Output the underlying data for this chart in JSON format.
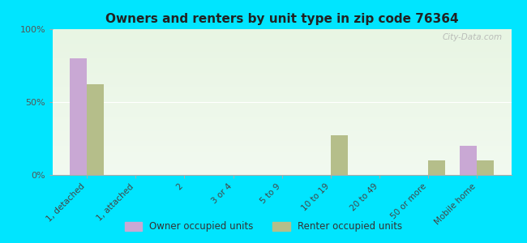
{
  "title": "Owners and renters by unit type in zip code 76364",
  "categories": [
    "1, detached",
    "1, attached",
    "2",
    "3 or 4",
    "5 to 9",
    "10 to 19",
    "20 to 49",
    "50 or more",
    "Mobile home"
  ],
  "owner_values": [
    80,
    0,
    0,
    0,
    0,
    0,
    0,
    0,
    20
  ],
  "renter_values": [
    62,
    0,
    0,
    0,
    0,
    27,
    0,
    10,
    10
  ],
  "owner_color": "#c9a8d4",
  "renter_color": "#b5be8a",
  "background_outer": "#00e5ff",
  "bg_top_color": "#e8f5e3",
  "bg_bottom_color": "#f2faf0",
  "ylim": [
    0,
    100
  ],
  "yticks": [
    0,
    50,
    100
  ],
  "ytick_labels": [
    "0%",
    "50%",
    "100%"
  ],
  "bar_width": 0.35,
  "legend_owner": "Owner occupied units",
  "legend_renter": "Renter occupied units",
  "watermark": "City-Data.com"
}
